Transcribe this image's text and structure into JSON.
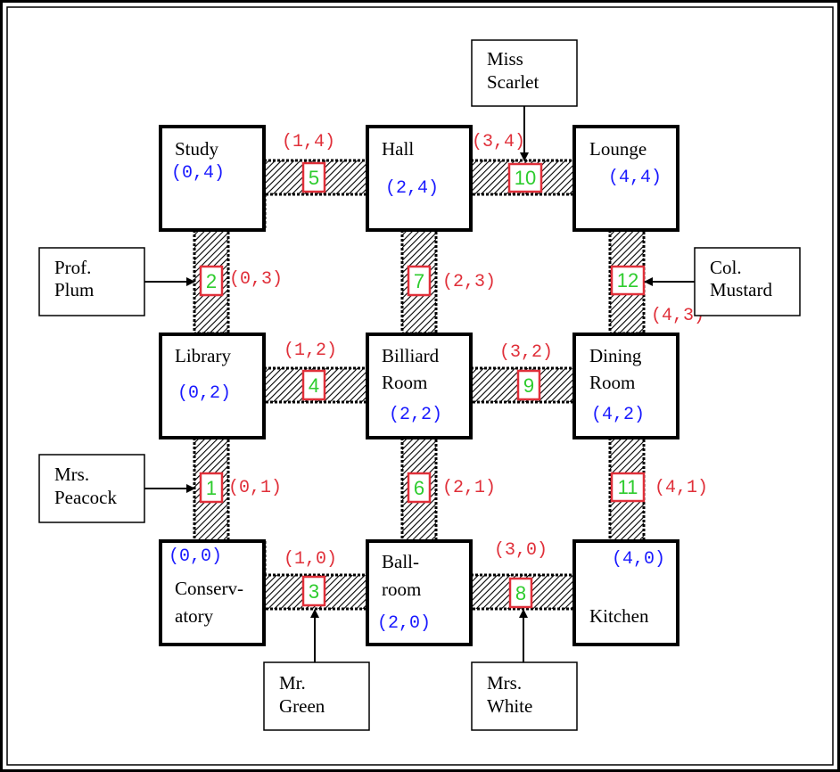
{
  "rooms": [
    {
      "id": "study",
      "name_lines": [
        "Study"
      ],
      "coord": "(0,4)"
    },
    {
      "id": "hall",
      "name_lines": [
        "Hall"
      ],
      "coord": "(2,4)"
    },
    {
      "id": "lounge",
      "name_lines": [
        "Lounge"
      ],
      "coord": "(4,4)"
    },
    {
      "id": "library",
      "name_lines": [
        "Library"
      ],
      "coord": "(0,2)"
    },
    {
      "id": "billiard",
      "name_lines": [
        "Billiard",
        "Room"
      ],
      "coord": "(2,2)"
    },
    {
      "id": "dining",
      "name_lines": [
        "Dining",
        "Room"
      ],
      "coord": "(4,2)"
    },
    {
      "id": "conservatory",
      "name_lines": [
        "Conserv-",
        "atory"
      ],
      "coord": "(0,0)"
    },
    {
      "id": "ballroom",
      "name_lines": [
        "Ball-",
        "room"
      ],
      "coord": "(2,0)"
    },
    {
      "id": "kitchen",
      "name_lines": [
        "Kitchen"
      ],
      "coord": "(4,0)"
    }
  ],
  "hallways": [
    {
      "number": "1",
      "coord": "(0,1)"
    },
    {
      "number": "2",
      "coord": "(0,3)"
    },
    {
      "number": "3",
      "coord": "(1,0)"
    },
    {
      "number": "4",
      "coord": "(1,2)"
    },
    {
      "number": "5",
      "coord": "(1,4)"
    },
    {
      "number": "6",
      "coord": "(2,1)"
    },
    {
      "number": "7",
      "coord": "(2,3)"
    },
    {
      "number": "8",
      "coord": "(3,0)"
    },
    {
      "number": "9",
      "coord": "(3,2)"
    },
    {
      "number": "10",
      "coord": "(3,4)"
    },
    {
      "number": "11",
      "coord": "(4,1)"
    },
    {
      "number": "12",
      "coord": "(4,3)"
    }
  ],
  "characters": [
    {
      "id": "scarlet",
      "name_lines": [
        "Miss",
        "Scarlet"
      ]
    },
    {
      "id": "plum",
      "name_lines": [
        "Prof.",
        "Plum"
      ]
    },
    {
      "id": "mustard",
      "name_lines": [
        "Col.",
        "Mustard"
      ]
    },
    {
      "id": "peacock",
      "name_lines": [
        "Mrs.",
        "Peacock"
      ]
    },
    {
      "id": "green",
      "name_lines": [
        "Mr.",
        "Green"
      ]
    },
    {
      "id": "white",
      "name_lines": [
        "Mrs.",
        "White"
      ]
    }
  ],
  "colors": {
    "room_coord": "#1a1aff",
    "hallway_coord": "#e0303a",
    "hallway_number": "#2ecc2e",
    "hallway_box_border": "#e0303a",
    "secret_passage": "#a8a8a8"
  }
}
